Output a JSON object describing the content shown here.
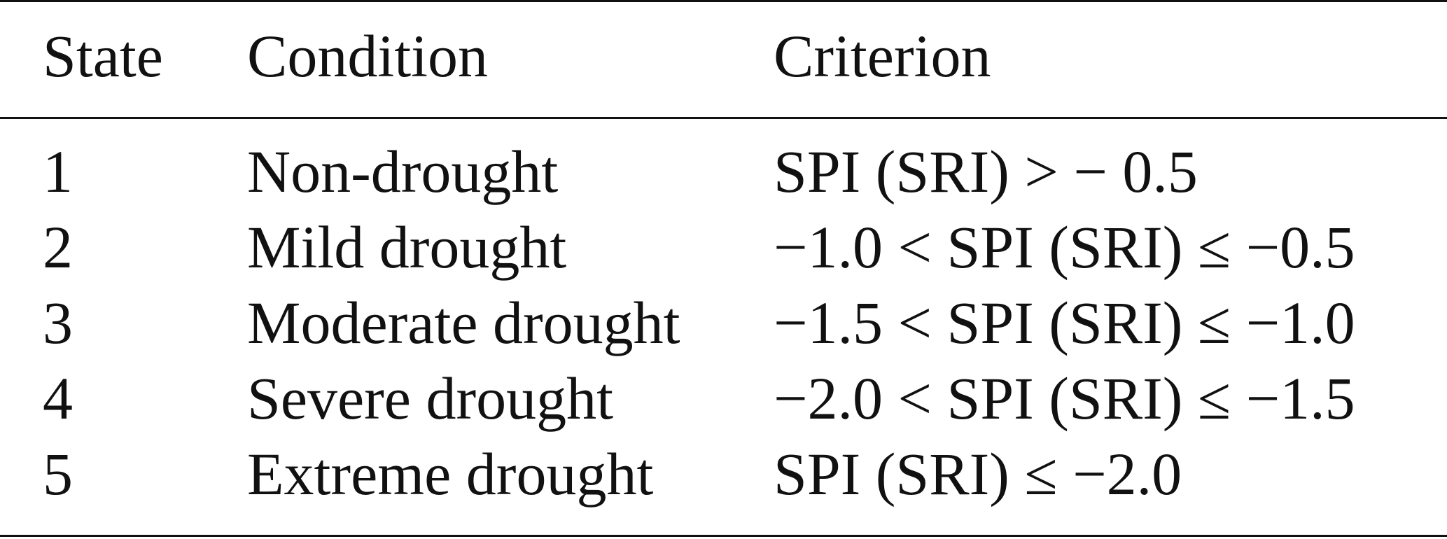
{
  "table": {
    "header": [
      "State",
      "Condition",
      "Criterion"
    ],
    "rows": [
      [
        "1",
        "Non-drought",
        "SPI (SRI) > − 0.5"
      ],
      [
        "2",
        "Mild drought",
        "−1.0 < SPI (SRI) ≤ −0.5"
      ],
      [
        "3",
        "Moderate drought",
        "−1.5 < SPI (SRI) ≤ −1.0"
      ],
      [
        "4",
        "Severe drought",
        "−2.0 < SPI (SRI) ≤ −1.5"
      ],
      [
        "5",
        "Extreme drought",
        "SPI (SRI) ≤ −2.0"
      ]
    ]
  }
}
